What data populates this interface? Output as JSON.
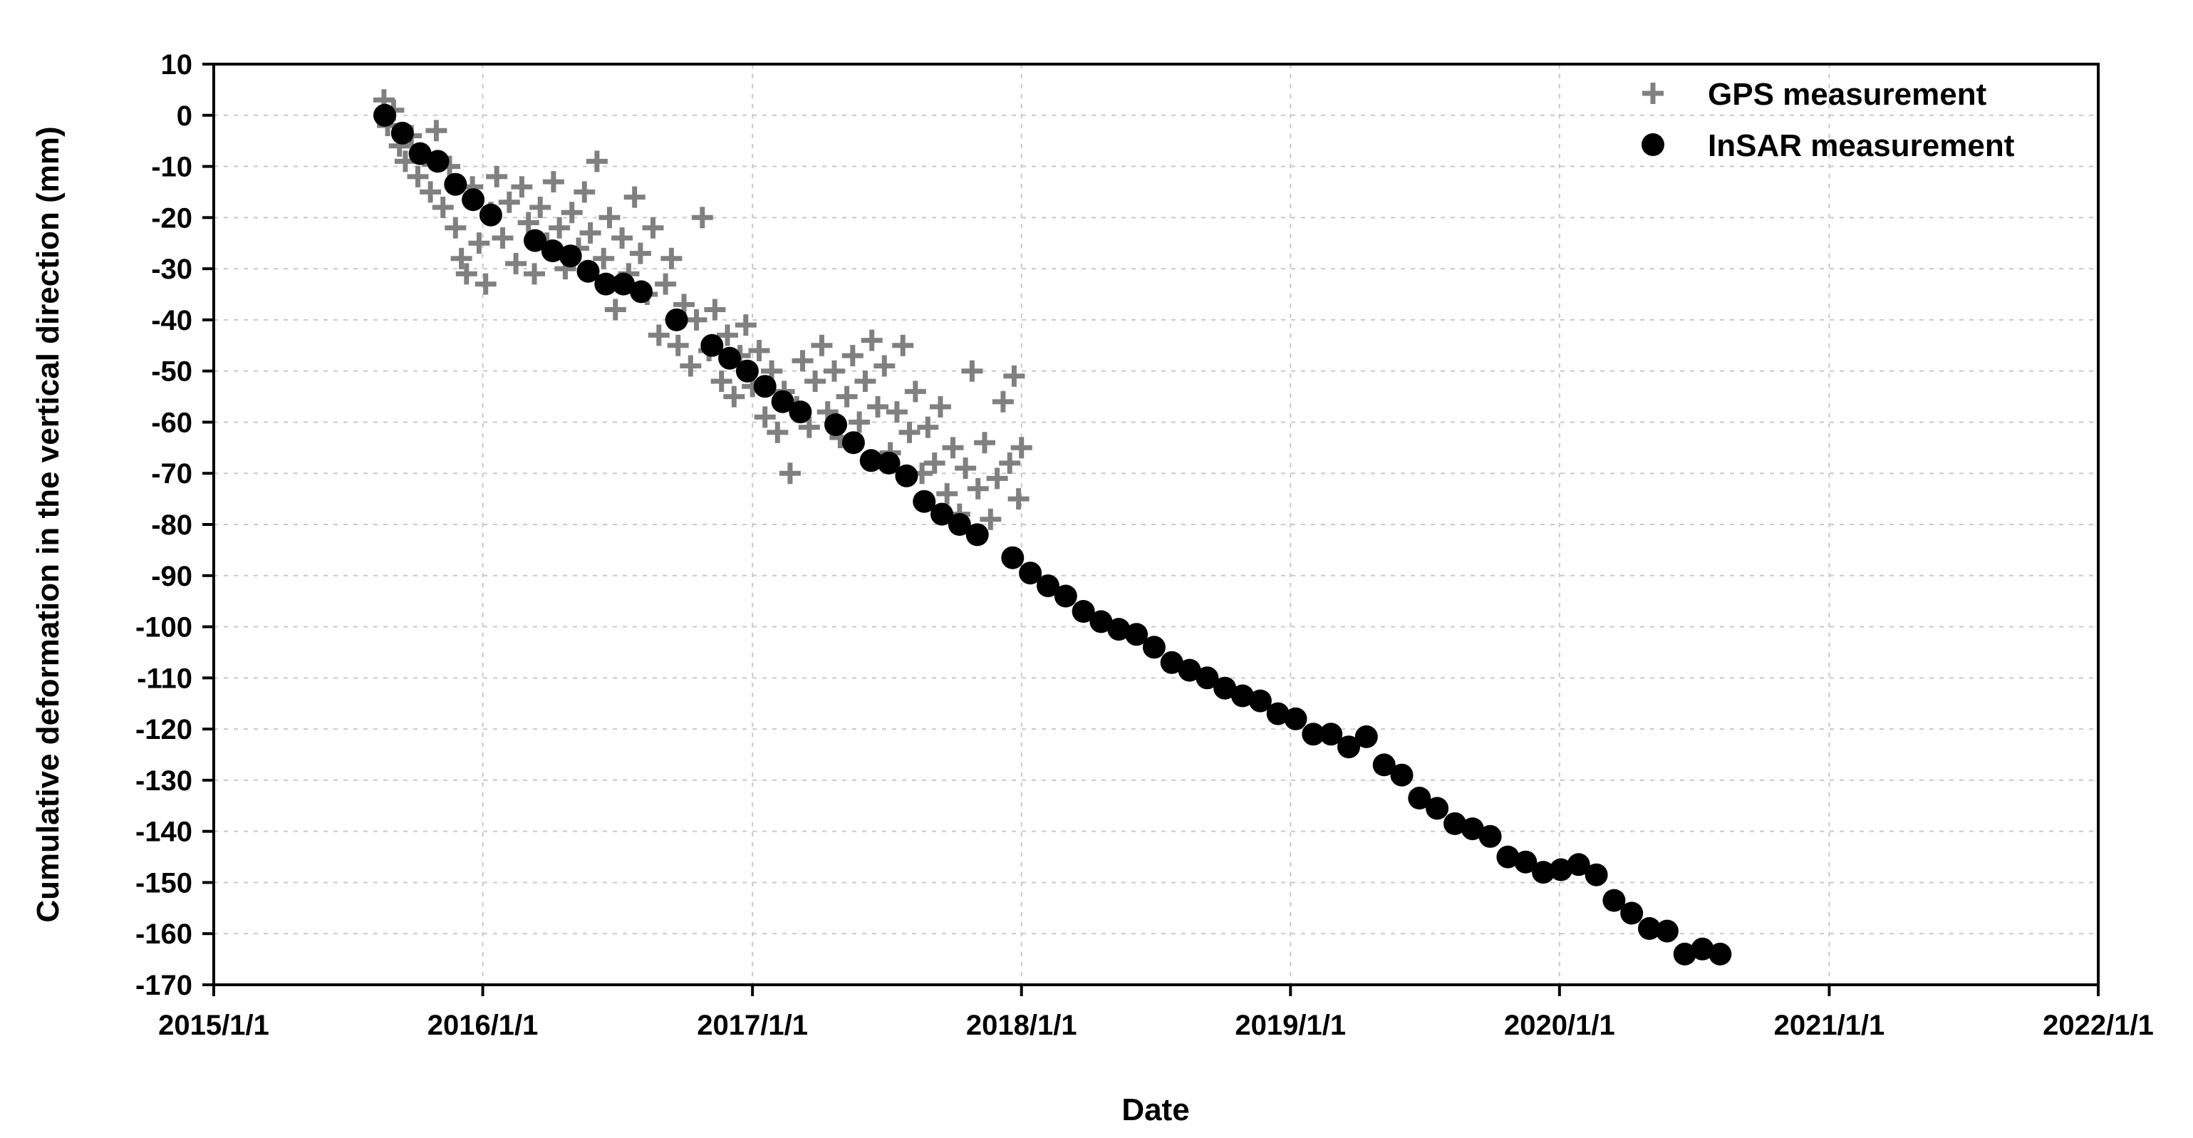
{
  "chart_data": {
    "type": "scatter",
    "xlabel": "Date",
    "ylabel": "Cumulative deformation in the vertical direction (mm)",
    "xticks": [
      "2015/1/1",
      "2016/1/1",
      "2017/1/1",
      "2018/1/1",
      "2019/1/1",
      "2020/1/1",
      "2021/1/1",
      "2022/1/1"
    ],
    "xlim": [
      "2015-01-01",
      "2022-01-01"
    ],
    "ylim": [
      -170,
      10
    ],
    "yticks": [
      10,
      0,
      -10,
      -20,
      -30,
      -40,
      -50,
      -60,
      -70,
      -80,
      -90,
      -100,
      -110,
      -120,
      -130,
      -140,
      -150,
      -160,
      -170
    ],
    "grid": true,
    "legend_position": "top-right",
    "series": [
      {
        "name": "GPS measurement",
        "marker": "plus",
        "color": "#808080",
        "points": [
          [
            "2015-08-20",
            3
          ],
          [
            "2015-08-25",
            -2
          ],
          [
            "2015-09-02",
            1
          ],
          [
            "2015-09-10",
            -6
          ],
          [
            "2015-09-18",
            -9
          ],
          [
            "2015-09-26",
            -4
          ],
          [
            "2015-10-05",
            -12
          ],
          [
            "2015-10-14",
            -8
          ],
          [
            "2015-10-22",
            -15
          ],
          [
            "2015-10-30",
            -3
          ],
          [
            "2015-11-08",
            -18
          ],
          [
            "2015-11-17",
            -10
          ],
          [
            "2015-11-25",
            -22
          ],
          [
            "2015-12-03",
            -28
          ],
          [
            "2015-12-10",
            -31
          ],
          [
            "2015-12-18",
            -14
          ],
          [
            "2015-12-27",
            -25
          ],
          [
            "2016-01-05",
            -33
          ],
          [
            "2016-01-12",
            -19
          ],
          [
            "2016-01-20",
            -12
          ],
          [
            "2016-01-28",
            -24
          ],
          [
            "2016-02-06",
            -17
          ],
          [
            "2016-02-15",
            -29
          ],
          [
            "2016-02-23",
            -14
          ],
          [
            "2016-03-03",
            -21
          ],
          [
            "2016-03-11",
            -31
          ],
          [
            "2016-03-19",
            -18
          ],
          [
            "2016-03-28",
            -25
          ],
          [
            "2016-04-06",
            -13
          ],
          [
            "2016-04-14",
            -22
          ],
          [
            "2016-04-22",
            -30
          ],
          [
            "2016-05-01",
            -19
          ],
          [
            "2016-05-10",
            -26
          ],
          [
            "2016-05-18",
            -15
          ],
          [
            "2016-05-26",
            -23
          ],
          [
            "2016-06-04",
            -9
          ],
          [
            "2016-06-13",
            -28
          ],
          [
            "2016-06-21",
            -20
          ],
          [
            "2016-06-29",
            -38
          ],
          [
            "2016-07-08",
            -24
          ],
          [
            "2016-07-17",
            -31
          ],
          [
            "2016-07-25",
            -16
          ],
          [
            "2016-08-02",
            -27
          ],
          [
            "2016-08-11",
            -35
          ],
          [
            "2016-08-19",
            -22
          ],
          [
            "2016-08-27",
            -43
          ],
          [
            "2016-09-05",
            -33
          ],
          [
            "2016-09-13",
            -28
          ],
          [
            "2016-09-22",
            -45
          ],
          [
            "2016-09-30",
            -37
          ],
          [
            "2016-10-09",
            -49
          ],
          [
            "2016-10-17",
            -40
          ],
          [
            "2016-10-25",
            -20
          ],
          [
            "2016-11-03",
            -46
          ],
          [
            "2016-11-11",
            -38
          ],
          [
            "2016-11-20",
            -52
          ],
          [
            "2016-11-28",
            -43
          ],
          [
            "2016-12-07",
            -55
          ],
          [
            "2016-12-15",
            -47
          ],
          [
            "2016-12-23",
            -41
          ],
          [
            "2017-01-01",
            -53
          ],
          [
            "2017-01-10",
            -46
          ],
          [
            "2017-01-18",
            -59
          ],
          [
            "2017-01-27",
            -50
          ],
          [
            "2017-02-04",
            -62
          ],
          [
            "2017-02-13",
            -54
          ],
          [
            "2017-02-21",
            -70
          ],
          [
            "2017-03-02",
            -57
          ],
          [
            "2017-03-10",
            -48
          ],
          [
            "2017-03-19",
            -61
          ],
          [
            "2017-03-27",
            -52
          ],
          [
            "2017-04-05",
            -45
          ],
          [
            "2017-04-13",
            -58
          ],
          [
            "2017-04-22",
            -50
          ],
          [
            "2017-04-30",
            -63
          ],
          [
            "2017-05-09",
            -55
          ],
          [
            "2017-05-17",
            -47
          ],
          [
            "2017-05-26",
            -60
          ],
          [
            "2017-06-03",
            -52
          ],
          [
            "2017-06-12",
            -44
          ],
          [
            "2017-06-20",
            -57
          ],
          [
            "2017-06-29",
            -49
          ],
          [
            "2017-07-07",
            -66
          ],
          [
            "2017-07-16",
            -58
          ],
          [
            "2017-07-24",
            -45
          ],
          [
            "2017-08-02",
            -62
          ],
          [
            "2017-08-10",
            -54
          ],
          [
            "2017-08-19",
            -70
          ],
          [
            "2017-08-27",
            -61
          ],
          [
            "2017-09-05",
            -68
          ],
          [
            "2017-09-13",
            -57
          ],
          [
            "2017-09-22",
            -74
          ],
          [
            "2017-09-30",
            -65
          ],
          [
            "2017-10-09",
            -78
          ],
          [
            "2017-10-17",
            -69
          ],
          [
            "2017-10-26",
            -50
          ],
          [
            "2017-11-03",
            -73
          ],
          [
            "2017-11-12",
            -64
          ],
          [
            "2017-11-20",
            -79
          ],
          [
            "2017-11-29",
            -71
          ],
          [
            "2017-12-07",
            -56
          ],
          [
            "2017-12-16",
            -68
          ],
          [
            "2017-12-22",
            -51
          ],
          [
            "2017-12-28",
            -75
          ],
          [
            "2018-01-01",
            -65
          ]
        ]
      },
      {
        "name": "InSAR measurement",
        "marker": "circle",
        "color": "#000000",
        "points": [
          [
            "2015-08-21",
            0
          ],
          [
            "2015-09-14",
            -3.5
          ],
          [
            "2015-10-08",
            -7.5
          ],
          [
            "2015-11-01",
            -9
          ],
          [
            "2015-11-25",
            -13.5
          ],
          [
            "2015-12-19",
            -16.5
          ],
          [
            "2016-01-12",
            -19.5
          ],
          [
            "2016-03-12",
            -24.5
          ],
          [
            "2016-04-05",
            -26.5
          ],
          [
            "2016-04-29",
            -27.5
          ],
          [
            "2016-05-23",
            -30.5
          ],
          [
            "2016-06-16",
            -33
          ],
          [
            "2016-07-10",
            -33
          ],
          [
            "2016-08-03",
            -34.5
          ],
          [
            "2016-09-20",
            -40
          ],
          [
            "2016-11-07",
            -45
          ],
          [
            "2016-12-01",
            -47.5
          ],
          [
            "2016-12-25",
            -50
          ],
          [
            "2017-01-18",
            -53
          ],
          [
            "2017-02-11",
            -56
          ],
          [
            "2017-03-07",
            -58
          ],
          [
            "2017-04-24",
            -60.5
          ],
          [
            "2017-05-18",
            -64
          ],
          [
            "2017-06-11",
            -67.5
          ],
          [
            "2017-07-05",
            -68
          ],
          [
            "2017-07-29",
            -70.5
          ],
          [
            "2017-08-22",
            -75.5
          ],
          [
            "2017-09-15",
            -78
          ],
          [
            "2017-10-09",
            -80
          ],
          [
            "2017-11-02",
            -82
          ],
          [
            "2017-12-20",
            -86.5
          ],
          [
            "2018-01-13",
            -89.5
          ],
          [
            "2018-02-06",
            -92
          ],
          [
            "2018-03-02",
            -94
          ],
          [
            "2018-03-26",
            -97
          ],
          [
            "2018-04-19",
            -99
          ],
          [
            "2018-05-13",
            -100.5
          ],
          [
            "2018-06-06",
            -101.5
          ],
          [
            "2018-06-30",
            -104
          ],
          [
            "2018-07-24",
            -107
          ],
          [
            "2018-08-17",
            -108.5
          ],
          [
            "2018-09-10",
            -110
          ],
          [
            "2018-10-04",
            -112
          ],
          [
            "2018-10-28",
            -113.5
          ],
          [
            "2018-11-21",
            -114.5
          ],
          [
            "2018-12-15",
            -117
          ],
          [
            "2019-01-08",
            -118
          ],
          [
            "2019-02-01",
            -121
          ],
          [
            "2019-02-25",
            -121
          ],
          [
            "2019-03-21",
            -123.5
          ],
          [
            "2019-04-14",
            -121.5
          ],
          [
            "2019-05-08",
            -127
          ],
          [
            "2019-06-01",
            -129
          ],
          [
            "2019-06-25",
            -133.5
          ],
          [
            "2019-07-19",
            -135.5
          ],
          [
            "2019-08-12",
            -138.5
          ],
          [
            "2019-09-05",
            -139.5
          ],
          [
            "2019-09-29",
            -141
          ],
          [
            "2019-10-23",
            -145
          ],
          [
            "2019-11-16",
            -146
          ],
          [
            "2019-12-10",
            -148
          ],
          [
            "2020-01-03",
            -147.5
          ],
          [
            "2020-01-27",
            -146.5
          ],
          [
            "2020-02-20",
            -148.5
          ],
          [
            "2020-03-15",
            -153.5
          ],
          [
            "2020-04-08",
            -156
          ],
          [
            "2020-05-02",
            -159
          ],
          [
            "2020-05-26",
            -159.5
          ],
          [
            "2020-06-19",
            -164
          ],
          [
            "2020-07-13",
            -163
          ],
          [
            "2020-08-06",
            -164
          ]
        ]
      }
    ]
  }
}
